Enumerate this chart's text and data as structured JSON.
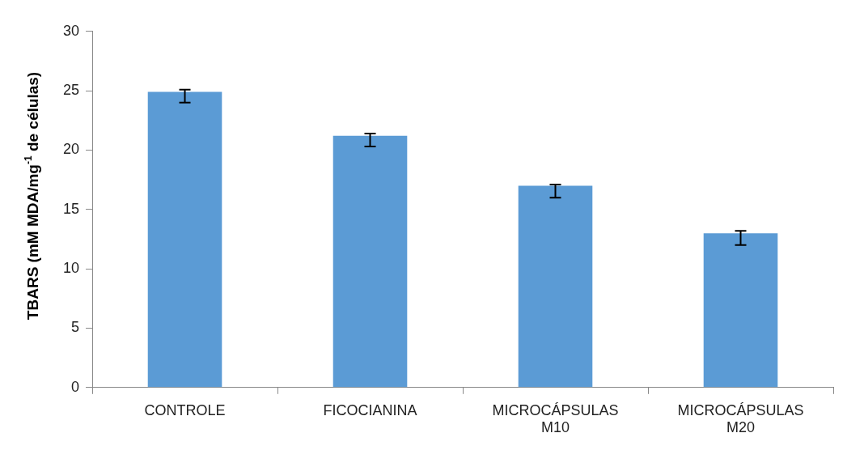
{
  "chart_data": {
    "type": "bar",
    "ylabel": "TBARS (mM MDA/mg$^{-1}$ de células)",
    "categories": [
      "CONTROLE",
      "FICOCIANINA",
      "MICROCÁPSULAS M10",
      "MICROCÁPSULAS M20"
    ],
    "values": [
      24.9,
      21.2,
      17.0,
      13.0
    ],
    "errors": [
      [
        24.0,
        25.1
      ],
      [
        20.3,
        21.4
      ],
      [
        16.0,
        17.1
      ],
      [
        12.0,
        13.2
      ]
    ],
    "color": "#5b9bd5",
    "ylim": [
      0,
      30
    ],
    "yticks": [
      0,
      5,
      10,
      15,
      20,
      25,
      30
    ],
    "grid": false,
    "legend": false
  }
}
